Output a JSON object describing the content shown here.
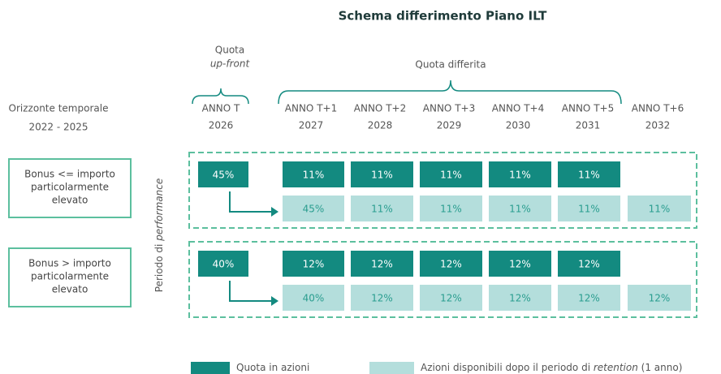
{
  "title": "Schema differimento Piano ILT",
  "horizon": {
    "label": "Orizzonte temporale",
    "years": "2022 - 2025"
  },
  "upfront_label": [
    "Quota",
    "up-front"
  ],
  "deferred_label": "Quota differita",
  "performance_label": [
    "Periodo di ",
    "performance"
  ],
  "columns": [
    {
      "label": "ANNO T",
      "year": "2026"
    },
    {
      "label": "ANNO T+1",
      "year": "2027"
    },
    {
      "label": "ANNO T+2",
      "year": "2028"
    },
    {
      "label": "ANNO T+3",
      "year": "2029"
    },
    {
      "label": "ANNO T+4",
      "year": "2030"
    },
    {
      "label": "ANNO T+5",
      "year": "2031"
    },
    {
      "label": "ANNO T+6",
      "year": "2032"
    }
  ],
  "groups": [
    {
      "label": [
        "Bonus <= importo",
        "particolarmente",
        "elevato"
      ],
      "upfront": "45%",
      "deferred": [
        "11%",
        "11%",
        "11%",
        "11%",
        "11%"
      ],
      "released": [
        "45%",
        "11%",
        "11%",
        "11%",
        "11%",
        "11%"
      ]
    },
    {
      "label": [
        "Bonus > importo",
        "particolarmente",
        "elevato"
      ],
      "upfront": "40%",
      "deferred": [
        "12%",
        "12%",
        "12%",
        "12%",
        "12%"
      ],
      "released": [
        "40%",
        "12%",
        "12%",
        "12%",
        "12%",
        "12%"
      ]
    }
  ],
  "legend": [
    {
      "label": [
        "Quota in azioni"
      ]
    },
    {
      "label": [
        "Azioni disponibili dopo il periodo di ",
        "retention",
        " (1 anno)"
      ]
    }
  ]
}
